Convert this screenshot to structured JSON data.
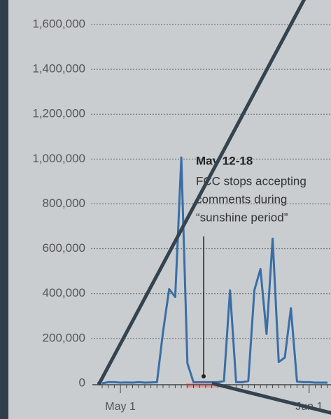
{
  "chart_data": {
    "type": "line",
    "categories": [
      null,
      null,
      null,
      "May 1",
      null,
      null,
      null,
      null,
      null,
      null,
      null,
      null,
      null,
      null,
      null,
      null,
      null,
      null,
      null,
      null,
      null,
      null,
      null,
      null,
      null,
      null,
      null,
      null,
      null,
      null,
      null,
      null,
      null,
      null,
      "Jun 1",
      null,
      null,
      null
    ],
    "series": [
      {
        "name": null,
        "color": "#3a6ea5",
        "values": [
          0,
          5000,
          5000,
          3000,
          4000,
          3000,
          5000,
          3000,
          4000,
          5000,
          230000,
          420000,
          385000,
          1007000,
          90000,
          5000,
          5000,
          5000,
          5000,
          5000,
          10000,
          415000,
          5000,
          5000,
          10000,
          415000,
          510000,
          220000,
          645000,
          95000,
          115000,
          335000,
          8000,
          5000,
          5000,
          3000,
          3000,
          3000
        ]
      }
    ],
    "ylim": [
      0,
      1600000
    ],
    "yticks": [
      0,
      {
        "value": 200000,
        "label": "200,000"
      },
      {
        "value": 400000,
        "label": "400,000"
      },
      {
        "value": 600000,
        "label": "600,000"
      },
      {
        "value": 800000,
        "label": "800,000"
      },
      {
        "value": 1000000,
        "label": "1,000,000"
      },
      {
        "value": 1200000,
        "label": "1,200,000"
      },
      {
        "value": 1400000,
        "label": "1,400,000"
      },
      {
        "value": 1600000,
        "label": "1,600,000"
      }
    ],
    "grid": true,
    "annotation": {
      "title": "May 12-18",
      "lines": [
        "FCC stops accepting",
        "comments during",
        "“sunshine period”"
      ]
    }
  }
}
